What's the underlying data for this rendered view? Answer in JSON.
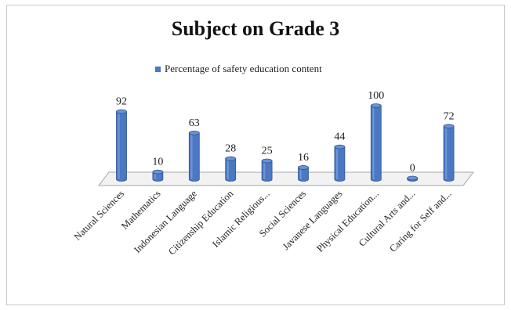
{
  "chart_data": {
    "type": "bar",
    "title": "Subject on Grade 3",
    "categories": [
      "Natural Sciences",
      "Mathematics",
      "Indonesian Language",
      "Citizenship Education",
      "Islamic Religious...",
      "Social Sciences",
      "Javanese Languages",
      "Physical Education...",
      "Cultural Arts and...",
      "Caring for Self and..."
    ],
    "series": [
      {
        "name": "Percentage of safety education content",
        "values": [
          92,
          10,
          63,
          28,
          25,
          16,
          44,
          100,
          0,
          72
        ]
      }
    ],
    "ylim": [
      0,
      100
    ],
    "grid": false,
    "legend_position": "top",
    "data_labels": true,
    "bar_color": "#4a78c2"
  }
}
